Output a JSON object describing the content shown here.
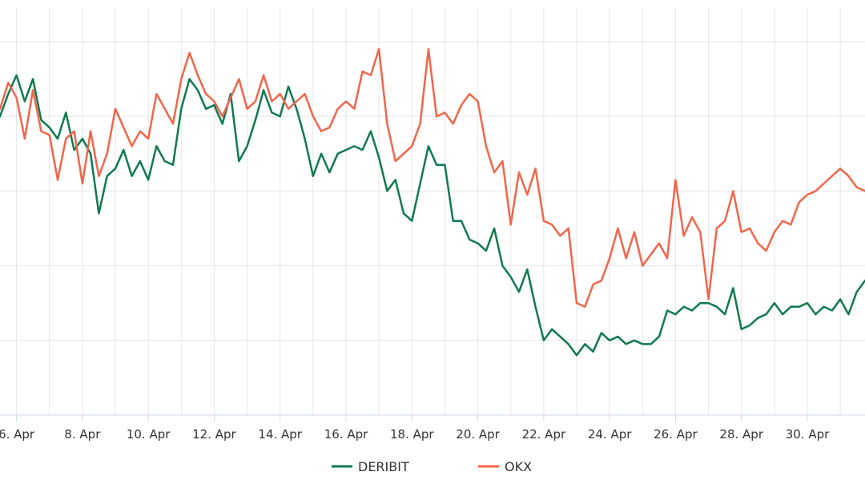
{
  "chart_data": {
    "type": "line",
    "title": "",
    "xlabel": "",
    "ylabel": "",
    "grid": true,
    "legend_position": "bottom-center",
    "x_ticks": [
      "6. Apr",
      "8. Apr",
      "10. Apr",
      "12. Apr",
      "14. Apr",
      "16. Apr",
      "18. Apr",
      "20. Apr",
      "22. Apr",
      "24. Apr",
      "26. Apr",
      "28. Apr",
      "30. Apr"
    ],
    "xlim": [
      5.5,
      31.75
    ],
    "ylim": [
      0,
      5.45
    ],
    "series": [
      {
        "name": "DERIBIT",
        "color": "#0e7a4f",
        "points": [
          [
            5.5,
            4.0
          ],
          [
            5.75,
            4.3
          ],
          [
            6.0,
            4.55
          ],
          [
            6.25,
            4.2
          ],
          [
            6.5,
            4.5
          ],
          [
            6.75,
            3.95
          ],
          [
            7.0,
            3.85
          ],
          [
            7.25,
            3.7
          ],
          [
            7.5,
            4.05
          ],
          [
            7.75,
            3.55
          ],
          [
            8.0,
            3.7
          ],
          [
            8.25,
            3.5
          ],
          [
            8.5,
            2.7
          ],
          [
            8.75,
            3.2
          ],
          [
            9.0,
            3.3
          ],
          [
            9.25,
            3.55
          ],
          [
            9.5,
            3.2
          ],
          [
            9.75,
            3.4
          ],
          [
            10.0,
            3.15
          ],
          [
            10.25,
            3.6
          ],
          [
            10.5,
            3.4
          ],
          [
            10.75,
            3.35
          ],
          [
            11.0,
            4.1
          ],
          [
            11.25,
            4.5
          ],
          [
            11.5,
            4.35
          ],
          [
            11.75,
            4.1
          ],
          [
            12.0,
            4.15
          ],
          [
            12.25,
            3.9
          ],
          [
            12.5,
            4.3
          ],
          [
            12.75,
            3.4
          ],
          [
            13.0,
            3.6
          ],
          [
            13.25,
            3.95
          ],
          [
            13.5,
            4.35
          ],
          [
            13.75,
            4.05
          ],
          [
            14.0,
            4.0
          ],
          [
            14.25,
            4.4
          ],
          [
            14.5,
            4.1
          ],
          [
            14.75,
            3.7
          ],
          [
            15.0,
            3.2
          ],
          [
            15.25,
            3.5
          ],
          [
            15.5,
            3.25
          ],
          [
            15.75,
            3.5
          ],
          [
            16.0,
            3.55
          ],
          [
            16.25,
            3.6
          ],
          [
            16.5,
            3.55
          ],
          [
            16.75,
            3.8
          ],
          [
            17.0,
            3.45
          ],
          [
            17.25,
            3.0
          ],
          [
            17.5,
            3.15
          ],
          [
            17.75,
            2.7
          ],
          [
            18.0,
            2.6
          ],
          [
            18.25,
            3.1
          ],
          [
            18.5,
            3.6
          ],
          [
            18.75,
            3.35
          ],
          [
            19.0,
            3.35
          ],
          [
            19.25,
            2.6
          ],
          [
            19.5,
            2.6
          ],
          [
            19.75,
            2.35
          ],
          [
            20.0,
            2.3
          ],
          [
            20.25,
            2.2
          ],
          [
            20.5,
            2.5
          ],
          [
            20.75,
            2.0
          ],
          [
            21.0,
            1.85
          ],
          [
            21.25,
            1.65
          ],
          [
            21.5,
            1.95
          ],
          [
            21.75,
            1.45
          ],
          [
            22.0,
            1.0
          ],
          [
            22.25,
            1.15
          ],
          [
            22.5,
            1.05
          ],
          [
            22.75,
            0.95
          ],
          [
            23.0,
            0.8
          ],
          [
            23.25,
            0.95
          ],
          [
            23.5,
            0.85
          ],
          [
            23.75,
            1.1
          ],
          [
            24.0,
            1.0
          ],
          [
            24.25,
            1.05
          ],
          [
            24.5,
            0.95
          ],
          [
            24.75,
            1.0
          ],
          [
            25.0,
            0.95
          ],
          [
            25.25,
            0.95
          ],
          [
            25.5,
            1.05
          ],
          [
            25.75,
            1.4
          ],
          [
            26.0,
            1.35
          ],
          [
            26.25,
            1.45
          ],
          [
            26.5,
            1.4
          ],
          [
            26.75,
            1.5
          ],
          [
            27.0,
            1.5
          ],
          [
            27.25,
            1.45
          ],
          [
            27.5,
            1.35
          ],
          [
            27.75,
            1.7
          ],
          [
            28.0,
            1.15
          ],
          [
            28.25,
            1.2
          ],
          [
            28.5,
            1.3
          ],
          [
            28.75,
            1.35
          ],
          [
            29.0,
            1.5
          ],
          [
            29.25,
            1.35
          ],
          [
            29.5,
            1.45
          ],
          [
            29.75,
            1.45
          ],
          [
            30.0,
            1.5
          ],
          [
            30.25,
            1.35
          ],
          [
            30.5,
            1.45
          ],
          [
            30.75,
            1.4
          ],
          [
            31.0,
            1.55
          ],
          [
            31.25,
            1.35
          ],
          [
            31.5,
            1.65
          ],
          [
            31.75,
            1.8
          ]
        ]
      },
      {
        "name": "OKX",
        "color": "#f2654a",
        "points": [
          [
            5.5,
            4.1
          ],
          [
            5.75,
            4.45
          ],
          [
            6.0,
            4.25
          ],
          [
            6.25,
            3.7
          ],
          [
            6.5,
            4.35
          ],
          [
            6.75,
            3.8
          ],
          [
            7.0,
            3.75
          ],
          [
            7.25,
            3.15
          ],
          [
            7.5,
            3.7
          ],
          [
            7.75,
            3.8
          ],
          [
            8.0,
            3.1
          ],
          [
            8.25,
            3.8
          ],
          [
            8.5,
            3.2
          ],
          [
            8.75,
            3.5
          ],
          [
            9.0,
            4.1
          ],
          [
            9.25,
            3.85
          ],
          [
            9.5,
            3.6
          ],
          [
            9.75,
            3.8
          ],
          [
            10.0,
            3.7
          ],
          [
            10.25,
            4.3
          ],
          [
            10.5,
            4.1
          ],
          [
            10.75,
            3.9
          ],
          [
            11.0,
            4.5
          ],
          [
            11.25,
            4.85
          ],
          [
            11.5,
            4.55
          ],
          [
            11.75,
            4.3
          ],
          [
            12.0,
            4.2
          ],
          [
            12.25,
            4.0
          ],
          [
            12.75,
            4.5
          ],
          [
            13.0,
            4.1
          ],
          [
            13.25,
            4.2
          ],
          [
            13.5,
            4.55
          ],
          [
            13.75,
            4.2
          ],
          [
            14.0,
            4.3
          ],
          [
            14.25,
            4.1
          ],
          [
            14.5,
            4.2
          ],
          [
            14.75,
            4.3
          ],
          [
            15.0,
            4.0
          ],
          [
            15.25,
            3.8
          ],
          [
            15.5,
            3.85
          ],
          [
            15.75,
            4.1
          ],
          [
            16.0,
            4.2
          ],
          [
            16.25,
            4.1
          ],
          [
            16.5,
            4.6
          ],
          [
            16.75,
            4.55
          ],
          [
            17.0,
            4.9
          ],
          [
            17.25,
            3.9
          ],
          [
            17.5,
            3.4
          ],
          [
            17.75,
            3.5
          ],
          [
            18.0,
            3.6
          ],
          [
            18.25,
            3.9
          ],
          [
            18.5,
            4.9
          ],
          [
            18.75,
            4.0
          ],
          [
            19.0,
            4.05
          ],
          [
            19.25,
            3.9
          ],
          [
            19.5,
            4.15
          ],
          [
            19.75,
            4.3
          ],
          [
            20.0,
            4.2
          ],
          [
            20.25,
            3.6
          ],
          [
            20.5,
            3.25
          ],
          [
            20.75,
            3.4
          ],
          [
            21.0,
            2.55
          ],
          [
            21.25,
            3.25
          ],
          [
            21.5,
            2.95
          ],
          [
            21.75,
            3.3
          ],
          [
            22.0,
            2.6
          ],
          [
            22.25,
            2.55
          ],
          [
            22.5,
            2.4
          ],
          [
            22.75,
            2.5
          ],
          [
            23.0,
            1.5
          ],
          [
            23.25,
            1.45
          ],
          [
            23.5,
            1.75
          ],
          [
            23.75,
            1.8
          ],
          [
            24.0,
            2.1
          ],
          [
            24.25,
            2.5
          ],
          [
            24.5,
            2.1
          ],
          [
            24.75,
            2.45
          ],
          [
            25.0,
            2.0
          ],
          [
            25.25,
            2.15
          ],
          [
            25.5,
            2.3
          ],
          [
            25.75,
            2.1
          ],
          [
            26.0,
            3.15
          ],
          [
            26.25,
            2.4
          ],
          [
            26.5,
            2.65
          ],
          [
            26.75,
            2.45
          ],
          [
            27.0,
            1.55
          ],
          [
            27.25,
            2.5
          ],
          [
            27.5,
            2.6
          ],
          [
            27.75,
            3.0
          ],
          [
            28.0,
            2.45
          ],
          [
            28.25,
            2.5
          ],
          [
            28.5,
            2.3
          ],
          [
            28.75,
            2.2
          ],
          [
            29.0,
            2.45
          ],
          [
            29.25,
            2.6
          ],
          [
            29.5,
            2.55
          ],
          [
            29.75,
            2.85
          ],
          [
            30.0,
            2.95
          ],
          [
            30.25,
            3.0
          ],
          [
            30.5,
            3.1
          ],
          [
            30.75,
            3.2
          ],
          [
            31.0,
            3.3
          ],
          [
            31.25,
            3.2
          ],
          [
            31.5,
            3.05
          ],
          [
            31.75,
            3.0
          ]
        ]
      }
    ]
  }
}
